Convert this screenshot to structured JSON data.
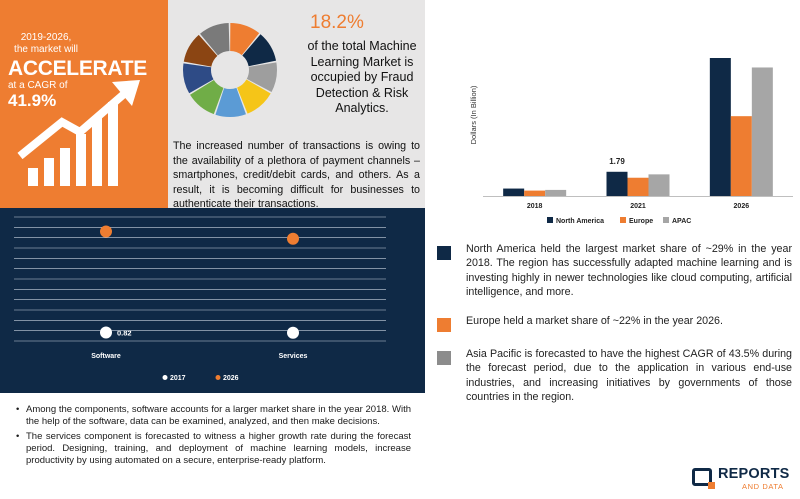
{
  "hero": {
    "period_line1": "2019-2026,",
    "period_line2": "the market will",
    "headline": "ACCELERATE",
    "cagr_label": "at a CAGR of",
    "cagr_value": "41.9%",
    "icon": "rising-arrow-bars-icon"
  },
  "stat": {
    "percent": "18.2%",
    "text": "of the total Machine Learning Market is occupied by Fraud Detection & Risk Analytics.",
    "paragraph": "The increased number of transactions is owing to the availability of a plethora of payment channels – smartphones, credit/debit cards, and others. As a result, it is becoming difficult for businesses to authenticate their transactions.",
    "donut_colors": [
      "#ee7d31",
      "#0f2946",
      "#9e9e9e",
      "#f5c518",
      "#5b9bd5",
      "#70ad47",
      "#2e4b86",
      "#8b4513",
      "#7a7a7a"
    ]
  },
  "chart_data": [
    {
      "type": "bar",
      "categories": [
        "2018",
        "2021",
        "2026"
      ],
      "series": [
        {
          "name": "North America",
          "values": [
            0.55,
            1.79,
            10.2
          ]
        },
        {
          "name": "Europe",
          "values": [
            0.4,
            1.35,
            5.9
          ]
        },
        {
          "name": "APAC",
          "values": [
            0.45,
            1.6,
            9.5
          ]
        }
      ],
      "ylabel": "Dollars (In Billion)",
      "data_labels": [
        {
          "category": "2021",
          "text": "1.79"
        }
      ],
      "colors": [
        "#0f2946",
        "#ee7d31",
        "#a6a6a6"
      ],
      "legend": "bottom",
      "grid": false
    },
    {
      "type": "scatter",
      "categories": [
        "Software",
        "Services"
      ],
      "series": [
        {
          "name": "2017",
          "values": [
            0.82,
            0.8
          ]
        },
        {
          "name": "2026",
          "values": [
            10.6,
            9.9
          ]
        }
      ],
      "data_labels": [
        {
          "category": "Software",
          "series": "2017",
          "text": "0.82"
        }
      ],
      "colors": [
        "#ffffff",
        "#ee7d31"
      ],
      "legend": "bottom",
      "grid": true,
      "ylim": [
        0,
        12
      ]
    }
  ],
  "components": {
    "bullets": [
      "Among the components, software accounts for a larger market share in the year 2018. With the help of the software, data can be examined, analyzed, and then make decisions.",
      "The services component is forecasted to witness a higher growth rate during the forecast period. Designing, training, and deployment of machine learning models, increase productivity by using automated on a secure, enterprise-ready platform."
    ]
  },
  "notes": [
    {
      "color": "#0f2946",
      "text": "North America held the largest market share of ~29% in the year 2018. The region has successfully adapted machine learning and is investing highly in newer technologies like cloud computing, artificial intelligence, and more."
    },
    {
      "color": "#ee7d31",
      "text": "Europe held a market share of ~22% in the year 2026."
    },
    {
      "color": "#8c8c8c",
      "text": "Asia Pacific is forecasted to have the highest CAGR of 43.5% during the forecast period, due to the application in various end-use industries, and increasing initiatives by governments of those countries in the region."
    }
  ],
  "brand": {
    "line1": "REPORTS",
    "line2": "AND DATA"
  }
}
